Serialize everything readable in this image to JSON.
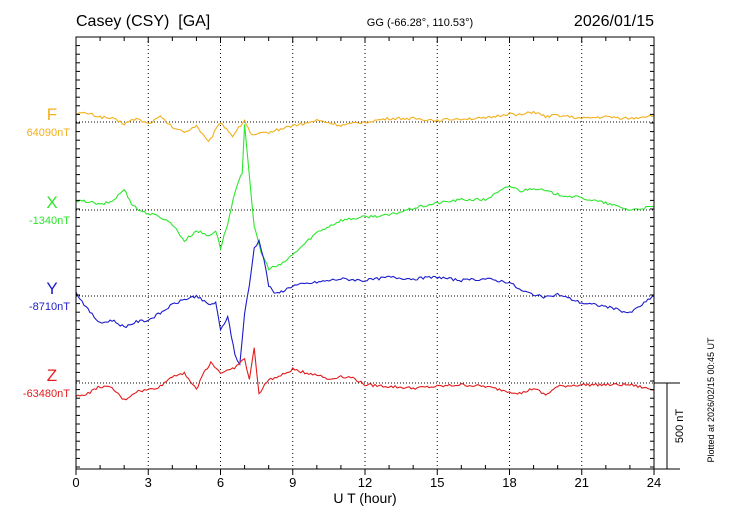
{
  "header": {
    "station": "Casey (CSY)  [GA]",
    "coords": "GG (-66.28°, 110.53°)",
    "date": "2026/01/15"
  },
  "plotted_note": "Plotted at 2026/02/15 00:45 UT",
  "scale_bar": {
    "label": "500 nT",
    "value": 500
  },
  "chart_data": {
    "type": "line",
    "xlabel": "U T (hour)",
    "xlim": [
      0,
      24
    ],
    "x_ticks": [
      0,
      3,
      6,
      9,
      12,
      15,
      18,
      21,
      24
    ],
    "x_tick_labels": [
      "0",
      "3",
      "6",
      "9",
      "12",
      "15",
      "18",
      "21",
      "24"
    ],
    "grid": true,
    "y_unit": "nT",
    "series": [
      {
        "name": "F",
        "baseline_label": "64090nT",
        "baseline": 64090,
        "color": "#f2b01e",
        "x": [
          0,
          0.5,
          1,
          1.5,
          2,
          2.5,
          3,
          3.5,
          4,
          4.5,
          5,
          5.5,
          6,
          6.5,
          7,
          7.3,
          7.6,
          8,
          8.5,
          9,
          9.5,
          10,
          10.5,
          11,
          11.5,
          12,
          13,
          14,
          15,
          16,
          17,
          18,
          18.5,
          19,
          19.5,
          20,
          21,
          22,
          23,
          24
        ],
        "y": [
          50,
          50,
          30,
          20,
          -10,
          20,
          -10,
          30,
          -30,
          -60,
          -20,
          -120,
          0,
          -80,
          10,
          -80,
          -70,
          -60,
          -40,
          -20,
          -10,
          10,
          -5,
          -20,
          -10,
          0,
          20,
          20,
          10,
          20,
          20,
          50,
          40,
          60,
          30,
          40,
          20,
          30,
          20,
          40
        ]
      },
      {
        "name": "X",
        "baseline_label": "-1340nT",
        "baseline": -1340,
        "color": "#2ee62e",
        "x": [
          0,
          0.5,
          1,
          1.5,
          2,
          2.3,
          2.6,
          3,
          3.5,
          4,
          4.5,
          5,
          5.5,
          5.8,
          6,
          6.3,
          6.6,
          6.9,
          7,
          7.2,
          7.4,
          7.7,
          8,
          8.5,
          9,
          10,
          11,
          12,
          13,
          14,
          15,
          16,
          17,
          18,
          18.5,
          19,
          19.5,
          20,
          21,
          22,
          23,
          24
        ],
        "y": [
          50,
          50,
          30,
          50,
          120,
          40,
          0,
          -20,
          -40,
          -80,
          -180,
          -120,
          -150,
          -120,
          -220,
          -80,
          100,
          220,
          500,
          200,
          -100,
          -250,
          -340,
          -320,
          -260,
          -130,
          -60,
          -40,
          -30,
          10,
          40,
          60,
          60,
          140,
          110,
          130,
          110,
          90,
          70,
          40,
          0,
          20
        ]
      },
      {
        "name": "Y",
        "baseline_label": "-8710nT",
        "baseline": -8710,
        "color": "#1c1ccc",
        "x": [
          0,
          0.5,
          1,
          1.5,
          2,
          2.5,
          3,
          3.5,
          4,
          4.5,
          5,
          5.5,
          5.8,
          6,
          6.3,
          6.6,
          6.8,
          7,
          7.2,
          7.4,
          7.6,
          7.8,
          8,
          8.3,
          8.6,
          9,
          10,
          11,
          12,
          13,
          14,
          15,
          16,
          17,
          18,
          18.5,
          19,
          19.5,
          20,
          21,
          22,
          23,
          24
        ],
        "y": [
          20,
          -80,
          -160,
          -140,
          -180,
          -150,
          -140,
          -100,
          -50,
          -20,
          0,
          -50,
          -40,
          -200,
          -120,
          -340,
          -400,
          -100,
          60,
          280,
          320,
          220,
          60,
          10,
          30,
          60,
          80,
          100,
          90,
          110,
          100,
          110,
          90,
          100,
          80,
          30,
          10,
          -10,
          10,
          -40,
          -60,
          -100,
          0
        ]
      },
      {
        "name": "Z",
        "baseline_label": "-63480nT",
        "baseline": -63480,
        "color": "#e31c1c",
        "x": [
          0,
          0.5,
          1,
          1.5,
          2,
          2.5,
          3,
          3.5,
          4,
          4.5,
          5,
          5.3,
          5.6,
          6,
          6.5,
          7,
          7.2,
          7.4,
          7.6,
          8,
          8.5,
          9,
          9.5,
          10,
          10.5,
          11,
          11.5,
          12,
          13,
          14,
          15,
          16,
          17,
          18,
          18.5,
          19,
          19.5,
          20,
          21,
          22,
          23,
          24
        ],
        "y": [
          -80,
          -60,
          -20,
          -30,
          -100,
          -50,
          -40,
          -20,
          40,
          60,
          -40,
          60,
          120,
          60,
          80,
          140,
          20,
          200,
          -60,
          20,
          40,
          80,
          60,
          50,
          20,
          40,
          30,
          -10,
          -20,
          -30,
          -20,
          -10,
          -20,
          -50,
          -60,
          -30,
          -70,
          -20,
          -10,
          -10,
          -10,
          -40
        ]
      }
    ]
  }
}
